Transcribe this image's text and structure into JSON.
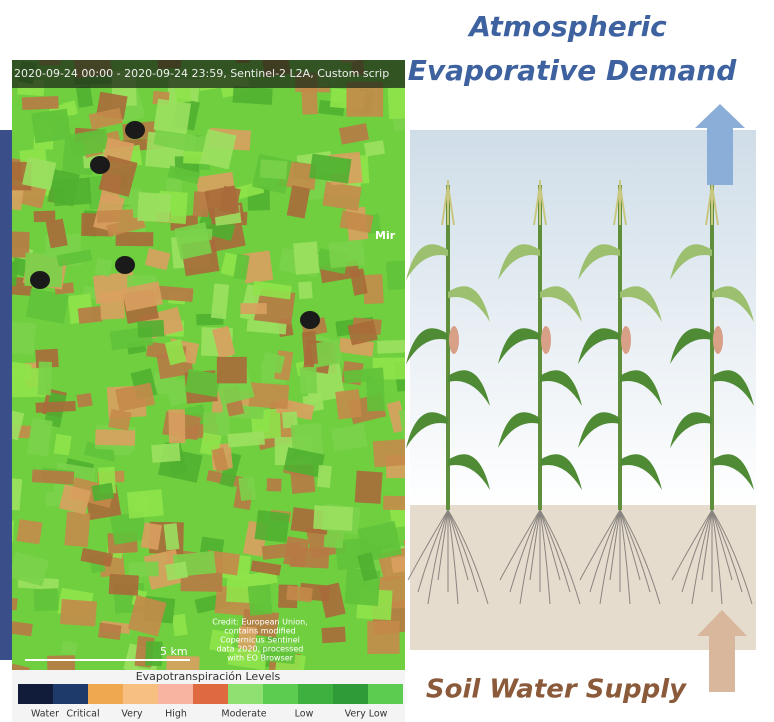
{
  "map": {
    "header": "2020-09-24 00:00 - 2020-09-24 23:59, Sentinel-2 L2A, Custom scrip",
    "place_label": "Mir",
    "credit": [
      "Credit: European Union,",
      "contains modified",
      "Copernicus Sentinel",
      "data 2020, processed",
      "with EO Browser"
    ],
    "scale": "5 km",
    "legend_title": "Evapotranspiración Levels",
    "legend_labels": [
      "Water",
      "Critical",
      "Very",
      "High",
      "Moderate",
      "Low",
      "Very Low"
    ]
  },
  "diagram": {
    "top_label": [
      "Atmospheric",
      "Evaporative Demand"
    ],
    "bottom_label": "Soil Water Supply"
  }
}
